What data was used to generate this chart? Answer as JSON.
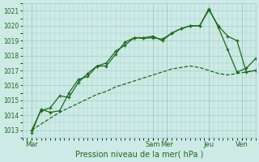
{
  "xlabel": "Pression niveau de la mer( hPa )",
  "bg_color": "#ceeae6",
  "grid_color": "#9ecfc8",
  "line_color": "#1a6b1a",
  "ylim": [
    1012.5,
    1021.5
  ],
  "yticks": [
    1013,
    1014,
    1015,
    1016,
    1017,
    1018,
    1019,
    1020,
    1021
  ],
  "xlim": [
    0,
    100
  ],
  "xtick_positions": [
    4,
    56,
    62,
    80,
    94
  ],
  "xtick_labels": [
    "Mar",
    "Sam",
    "Mer",
    "Jeu",
    "Ven"
  ],
  "vline_positions": [
    4,
    56,
    62,
    80,
    94
  ],
  "series_smooth_x": [
    4,
    8,
    12,
    16,
    20,
    24,
    28,
    32,
    36,
    40,
    44,
    48,
    52,
    56,
    60,
    64,
    68,
    72,
    76,
    80,
    84,
    88,
    92,
    96,
    100
  ],
  "series_smooth_y": [
    1013.0,
    1013.4,
    1013.8,
    1014.2,
    1014.5,
    1014.8,
    1015.1,
    1015.4,
    1015.6,
    1015.9,
    1016.1,
    1016.3,
    1016.5,
    1016.7,
    1016.9,
    1017.1,
    1017.2,
    1017.3,
    1017.2,
    1017.0,
    1016.8,
    1016.7,
    1016.8,
    1016.9,
    1017.0
  ],
  "series2_x": [
    4,
    8,
    12,
    16,
    20,
    24,
    28,
    32,
    36,
    40,
    44,
    48,
    52,
    56,
    60,
    64,
    68,
    72,
    76,
    80,
    84,
    88,
    92,
    96,
    100
  ],
  "series2_y": [
    1013.0,
    1014.3,
    1014.5,
    1015.3,
    1015.2,
    1016.2,
    1016.8,
    1017.3,
    1017.5,
    1018.3,
    1018.7,
    1019.2,
    1019.2,
    1019.3,
    1019.0,
    1019.5,
    1019.8,
    1020.0,
    1020.0,
    1021.05,
    1020.0,
    1019.3,
    1019.0,
    1016.9,
    1017.0
  ],
  "series3_x": [
    4,
    8,
    12,
    16,
    20,
    24,
    28,
    32,
    36,
    40,
    44,
    48,
    52,
    56,
    60,
    64,
    68,
    72,
    76,
    80,
    84,
    88,
    92,
    96,
    100
  ],
  "series3_y": [
    1012.8,
    1014.4,
    1014.2,
    1014.3,
    1015.5,
    1016.4,
    1016.6,
    1017.3,
    1017.3,
    1018.1,
    1018.9,
    1019.2,
    1019.15,
    1019.2,
    1019.1,
    1019.5,
    1019.8,
    1020.0,
    1020.0,
    1021.15,
    1019.9,
    1018.4,
    1016.9,
    1017.15,
    1017.8
  ]
}
